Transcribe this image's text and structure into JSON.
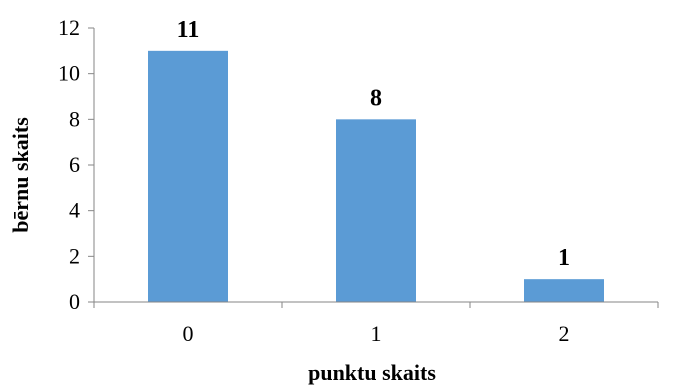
{
  "chart_data": {
    "type": "bar",
    "categories": [
      "0",
      "1",
      "2"
    ],
    "values": [
      11,
      8,
      1
    ],
    "data_labels": [
      "11",
      "8",
      "1"
    ],
    "title": "",
    "xlabel": "punktu skaits",
    "ylabel": "bērnu skaits",
    "ylim": [
      0,
      12
    ],
    "yticks": [
      0,
      2,
      4,
      6,
      8,
      10,
      12
    ],
    "ytick_labels": [
      "0",
      "2",
      "4",
      "6",
      "8",
      "10",
      "12"
    ],
    "grid": false,
    "legend": "none",
    "bar_color": "#5b9bd5",
    "axis_color": "#868686"
  }
}
